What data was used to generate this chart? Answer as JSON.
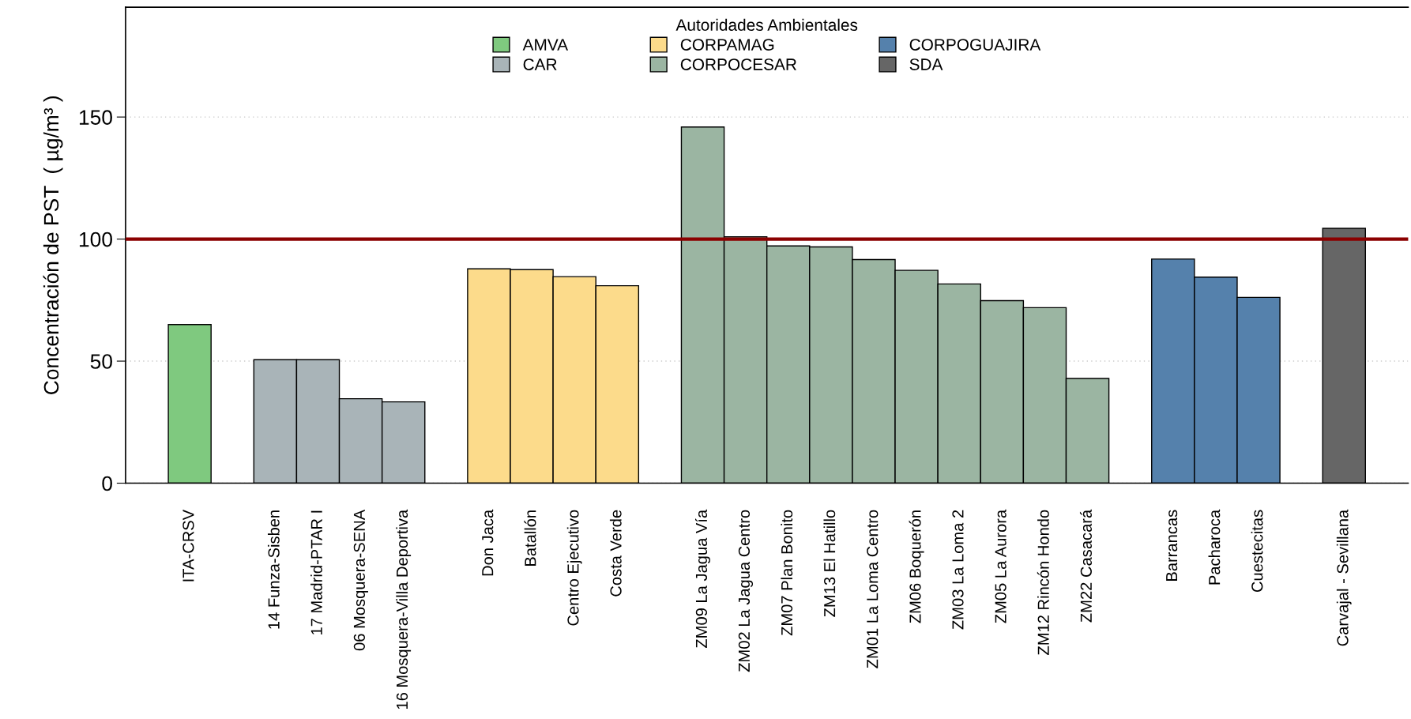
{
  "chart_data": {
    "type": "bar",
    "ylabel": "Concentración de PST  ( µg/m³ )",
    "legend_title": "Autoridades Ambientales",
    "categories": [
      null,
      "ITA-CRSV",
      null,
      "14 Funza-Sisben",
      "17 Madrid-PTAR I",
      "06 Mosquera-SENA",
      "16 Mosquera-Villa Deportiva",
      null,
      "Don Jaca",
      "Batallón",
      "Centro Ejecutivo",
      "Costa Verde",
      null,
      "ZM09 La Jagua Vía",
      "ZM02 La Jagua Centro",
      "ZM07 Plan Bonito",
      "ZM13 El Hatillo",
      "ZM01 La Loma Centro",
      "ZM06 Boquerón",
      "ZM03 La Loma 2",
      "ZM05 La Aurora",
      "ZM12 Rincón Hondo",
      "ZM22 Casacará",
      null,
      "Barrancas",
      "Pacharoca",
      "Cuestecitas",
      null,
      "Carvajal - Sevillana",
      null
    ],
    "series": [
      {
        "name": "AMVA",
        "color": "#7fc97f",
        "values": [
          null,
          65,
          null,
          null,
          null,
          null,
          null,
          null,
          null,
          null,
          null,
          null,
          null,
          null,
          null,
          null,
          null,
          null,
          null,
          null,
          null,
          null,
          null,
          null,
          null,
          null,
          null,
          null,
          null,
          null
        ]
      },
      {
        "name": "CAR",
        "color": "#a9b4b8",
        "values": [
          null,
          null,
          null,
          50.6,
          50.6,
          34.6,
          33.3,
          null,
          null,
          null,
          null,
          null,
          null,
          null,
          null,
          null,
          null,
          null,
          null,
          null,
          null,
          null,
          null,
          null,
          null,
          null,
          null,
          null,
          null,
          null
        ]
      },
      {
        "name": "CORPAMAG",
        "color": "#fcdb8b",
        "values": [
          null,
          null,
          null,
          null,
          null,
          null,
          null,
          null,
          87.8,
          87.5,
          84.6,
          80.9,
          null,
          null,
          null,
          null,
          null,
          null,
          null,
          null,
          null,
          null,
          null,
          null,
          null,
          null,
          null,
          null,
          null,
          null
        ]
      },
      {
        "name": "CORPOCESAR",
        "color": "#9bb5a2",
        "values": [
          null,
          null,
          null,
          null,
          null,
          null,
          null,
          null,
          null,
          null,
          null,
          null,
          null,
          145.9,
          100.9,
          97.2,
          96.8,
          91.6,
          87.2,
          81.6,
          74.8,
          71.9,
          42.9,
          null,
          null,
          null,
          null,
          null,
          null,
          null
        ]
      },
      {
        "name": "CORPOGUAJIRA",
        "color": "#5581ac",
        "values": [
          null,
          null,
          null,
          null,
          null,
          null,
          null,
          null,
          null,
          null,
          null,
          null,
          null,
          null,
          null,
          null,
          null,
          null,
          null,
          null,
          null,
          null,
          null,
          null,
          91.8,
          84.4,
          76.1,
          null,
          null,
          null
        ]
      },
      {
        "name": "SDA",
        "color": "#666666",
        "values": [
          null,
          null,
          null,
          null,
          null,
          null,
          null,
          null,
          null,
          null,
          null,
          null,
          null,
          null,
          null,
          null,
          null,
          null,
          null,
          null,
          null,
          null,
          null,
          null,
          null,
          null,
          null,
          null,
          104.4,
          null
        ]
      }
    ],
    "ylim": [
      0,
      195
    ],
    "yticks": [
      0,
      50,
      100,
      150
    ],
    "grid": "y",
    "legend": "top",
    "ref_lines": [
      {
        "axis": "y",
        "value": 100,
        "color": "#8b0000",
        "line_style": "solid"
      }
    ]
  }
}
